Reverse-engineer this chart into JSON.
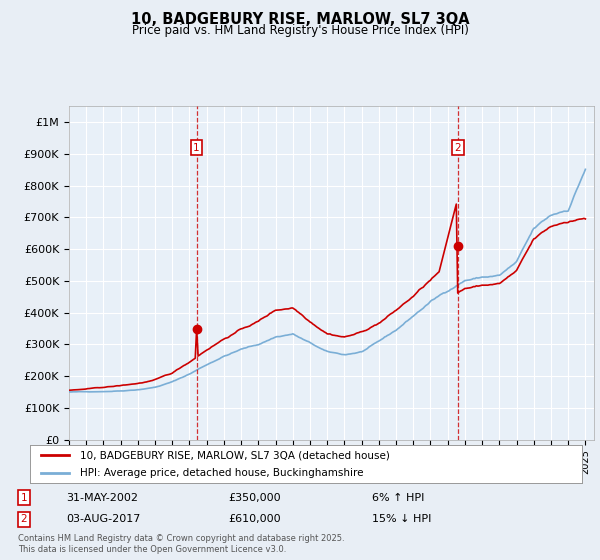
{
  "title": "10, BADGEBURY RISE, MARLOW, SL7 3QA",
  "subtitle": "Price paid vs. HM Land Registry's House Price Index (HPI)",
  "ylabel_ticks": [
    "£0",
    "£100K",
    "£200K",
    "£300K",
    "£400K",
    "£500K",
    "£600K",
    "£700K",
    "£800K",
    "£900K",
    "£1M"
  ],
  "ytick_values": [
    0,
    100000,
    200000,
    300000,
    400000,
    500000,
    600000,
    700000,
    800000,
    900000,
    1000000
  ],
  "ylim": [
    0,
    1050000
  ],
  "xlim_start": 1995.0,
  "xlim_end": 2025.5,
  "background_color": "#e8eef5",
  "plot_bg_color": "#e8f0f8",
  "line1_color": "#cc0000",
  "line2_color": "#7aaed6",
  "grid_color": "#ffffff",
  "marker1_date": 2002.41,
  "marker2_date": 2017.58,
  "marker1_price": 350000,
  "marker2_price": 610000,
  "legend_line1": "10, BADGEBURY RISE, MARLOW, SL7 3QA (detached house)",
  "legend_line2": "HPI: Average price, detached house, Buckinghamshire",
  "annotation1_date": "31-MAY-2002",
  "annotation1_price": "£350,000",
  "annotation1_hpi": "6% ↑ HPI",
  "annotation2_date": "03-AUG-2017",
  "annotation2_price": "£610,000",
  "annotation2_hpi": "15% ↓ HPI",
  "footer": "Contains HM Land Registry data © Crown copyright and database right 2025.\nThis data is licensed under the Open Government Licence v3.0."
}
